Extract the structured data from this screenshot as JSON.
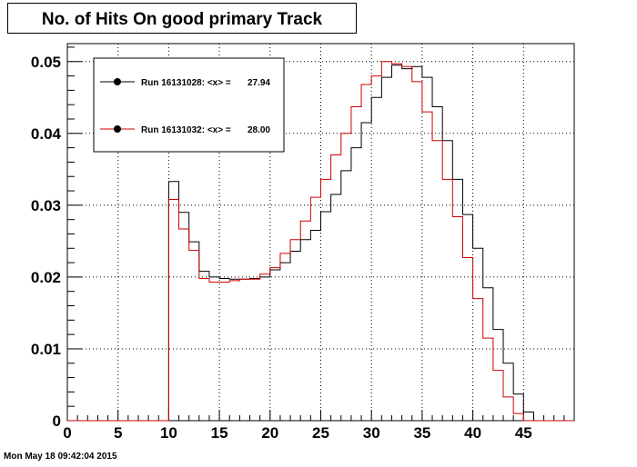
{
  "chart_data": {
    "type": "histogram",
    "title": "No. of Hits On good primary Track",
    "xlim": [
      0,
      50
    ],
    "ylim": [
      0,
      0.0525
    ],
    "xticks": [
      "0",
      "5",
      "10",
      "15",
      "20",
      "25",
      "30",
      "35",
      "40",
      "45"
    ],
    "yticks": [
      "0",
      "0.01",
      "0.02",
      "0.03",
      "0.04",
      "0.05"
    ],
    "grid": true,
    "legend_position": "top-left",
    "bin_width": 1,
    "series": [
      {
        "name": "Run 16131028: <x> =",
        "mean": "27.94",
        "color": "#000000",
        "bin_start": 10,
        "values": [
          0.0333,
          0.029,
          0.0249,
          0.0208,
          0.02,
          0.0198,
          0.0197,
          0.0197,
          0.0198,
          0.02,
          0.021,
          0.022,
          0.0236,
          0.0252,
          0.0265,
          0.0291,
          0.0315,
          0.0348,
          0.038,
          0.0415,
          0.045,
          0.0478,
          0.0495,
          0.049,
          0.0493,
          0.0478,
          0.0437,
          0.039,
          0.0336,
          0.0287,
          0.024,
          0.0185,
          0.0127,
          0.008,
          0.0037,
          0.0012,
          0
        ]
      },
      {
        "name": "Run 16131032: <x> =",
        "mean": "28.00",
        "color": "#cc0000",
        "bin_start": 10,
        "values": [
          0.0308,
          0.0267,
          0.0237,
          0.0198,
          0.0193,
          0.0193,
          0.0195,
          0.0197,
          0.0197,
          0.0204,
          0.0213,
          0.0233,
          0.0252,
          0.0278,
          0.0311,
          0.0336,
          0.037,
          0.04,
          0.0437,
          0.0468,
          0.048,
          0.05,
          0.0497,
          0.0493,
          0.0472,
          0.043,
          0.039,
          0.0336,
          0.0284,
          0.0227,
          0.017,
          0.0115,
          0.007,
          0.0033,
          0.001,
          0,
          0
        ]
      }
    ]
  },
  "footer": "Mon May 18 09:42:04 2015"
}
